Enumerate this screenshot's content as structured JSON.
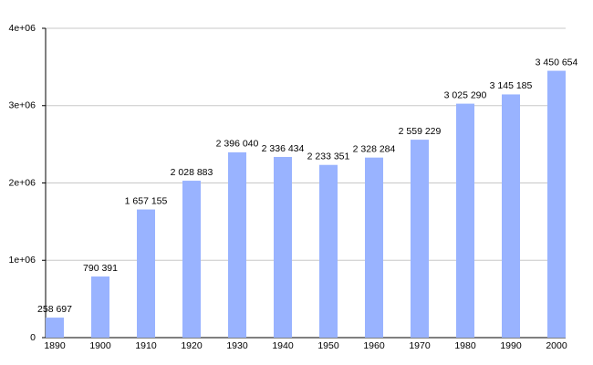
{
  "chart_data": {
    "type": "bar",
    "categories": [
      "1890",
      "1900",
      "1910",
      "1920",
      "1930",
      "1940",
      "1950",
      "1960",
      "1970",
      "1980",
      "1990",
      "2000"
    ],
    "values": [
      258697,
      790391,
      1657155,
      2028883,
      2396040,
      2336434,
      2233351,
      2328284,
      2559229,
      3025290,
      3145185,
      3450654
    ],
    "value_labels": [
      "258 697",
      "790 391",
      "1 657 155",
      "2 028 883",
      "2 396 040",
      "2 336 434",
      "2 233 351",
      "2 328 284",
      "2 559 229",
      "3 025 290",
      "3 145 185",
      "3 450 654"
    ],
    "color": "#99b3ff",
    "ylim": [
      0,
      4000000
    ],
    "yticks": [
      0,
      {
        "value": 1000000,
        "label": "1e+06"
      },
      {
        "value": 2000000,
        "label": "2e+06"
      },
      {
        "value": 3000000,
        "label": "3e+06"
      },
      {
        "value": 4000000,
        "label": "4e+06"
      }
    ],
    "grid": true
  }
}
